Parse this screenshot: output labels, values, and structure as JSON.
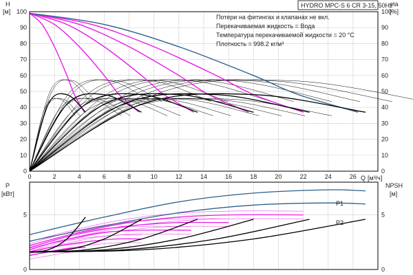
{
  "chart_data": [
    {
      "type": "line",
      "title": "HYDRO MPC-S 6 CR 3-15, 50Hz",
      "info_lines": [
        "Потери на фитингах и клапанах не вкл.",
        "Перекачиваемая жидкость = Вода",
        "Температура перекачиваемой жидкости = 20 °C",
        "Плотность = 998.2 кг/м³"
      ],
      "ylabel_left": "H",
      "ylabel_left_unit": "[м]",
      "ylabel_right": "eta",
      "ylabel_right_unit": "[%]",
      "xlabel": "Q",
      "xlabel_unit": "[м³/ч]",
      "xlim": [
        0,
        28
      ],
      "ylim": [
        0,
        100
      ],
      "x_ticks": [
        "0",
        "2",
        "4",
        "6",
        "8",
        "10",
        "12",
        "14",
        "16",
        "18",
        "20",
        "22",
        "24",
        "26"
      ],
      "y_ticks": [
        "0",
        "10",
        "20",
        "30",
        "40",
        "50",
        "60",
        "70",
        "80",
        "90",
        "100"
      ],
      "grid": true,
      "colors": {
        "pump_curves": "#e81be8",
        "max_curve": "#2c5f8a",
        "efficiency": "#000000"
      },
      "series": [
        {
          "group": "head",
          "color": "#e81be8",
          "x": [
            0,
            1,
            2,
            3,
            3.6,
            4.4
          ],
          "y": [
            99,
            92,
            78,
            60,
            48,
            37
          ]
        },
        {
          "group": "head",
          "color": "#e81be8",
          "x": [
            0,
            2,
            4,
            6,
            7.2,
            8.8
          ],
          "y": [
            99,
            92,
            78,
            60,
            48,
            37
          ]
        },
        {
          "group": "head",
          "color": "#e81be8",
          "x": [
            0,
            3,
            6,
            9,
            10.8,
            13.2
          ],
          "y": [
            99,
            92,
            78,
            60,
            48,
            37
          ]
        },
        {
          "group": "head",
          "color": "#e81be8",
          "x": [
            0,
            4,
            8,
            12,
            14.4,
            17.6
          ],
          "y": [
            99,
            92,
            78,
            60,
            48,
            37
          ]
        },
        {
          "group": "head",
          "color": "#e81be8",
          "x": [
            0,
            5,
            10,
            15,
            18,
            22
          ],
          "y": [
            99,
            92,
            78,
            60,
            48,
            37
          ]
        },
        {
          "group": "head",
          "color": "#2c5f8a",
          "x": [
            0,
            6,
            12,
            18,
            21.6,
            26.4
          ],
          "y": [
            99,
            92,
            78,
            60,
            48,
            37
          ]
        },
        {
          "group": "eta",
          "color": "#000000",
          "x": [
            0,
            1.5,
            3,
            4.5
          ],
          "y": [
            0,
            42,
            48,
            37
          ]
        },
        {
          "group": "eta",
          "color": "#000000",
          "x": [
            0,
            3,
            6,
            9
          ],
          "y": [
            0,
            42,
            48,
            37
          ]
        },
        {
          "group": "eta",
          "color": "#000000",
          "x": [
            0,
            4.5,
            9,
            13.5
          ],
          "y": [
            0,
            42,
            48,
            37
          ]
        },
        {
          "group": "eta",
          "color": "#000000",
          "x": [
            0,
            6,
            12,
            18
          ],
          "y": [
            0,
            42,
            48,
            37
          ]
        },
        {
          "group": "eta",
          "color": "#000000",
          "x": [
            0,
            7.5,
            15,
            22.5
          ],
          "y": [
            0,
            42,
            48,
            37
          ]
        },
        {
          "group": "eta",
          "color": "#000000",
          "x": [
            0,
            9,
            18,
            27
          ],
          "y": [
            0,
            42,
            48,
            37
          ]
        }
      ]
    },
    {
      "type": "line",
      "ylabel_left": "P",
      "ylabel_left_unit": "[кВт]",
      "ylabel_right": "NPSH",
      "ylabel_right_unit": "[м]",
      "xlim": [
        0,
        28
      ],
      "ylim": [
        0,
        8
      ],
      "y_ticks": [
        "0",
        "5"
      ],
      "y_tick_values": [
        0,
        5
      ],
      "grid": true,
      "series_labels": [
        "P1",
        "P2"
      ],
      "series": [
        {
          "name": "P1",
          "group": "p1",
          "color": "#2c5f8a",
          "x": [
            0,
            6,
            12,
            18,
            24,
            27
          ],
          "y": [
            3.2,
            4.8,
            6.2,
            7.0,
            7.3,
            7.2
          ]
        },
        {
          "name": "P2",
          "group": "p2",
          "color": "#2c5f8a",
          "x": [
            0,
            6,
            12,
            18,
            24,
            27
          ],
          "y": [
            2.6,
            4.0,
            5.2,
            5.9,
            6.1,
            6.0
          ]
        },
        {
          "group": "p",
          "color": "#e81be8",
          "x": [
            0,
            4,
            8,
            12,
            16,
            22
          ],
          "y": [
            2.2,
            3.4,
            4.3,
            4.8,
            5.0,
            5.0
          ]
        },
        {
          "group": "p",
          "color": "#e81be8",
          "x": [
            0,
            3,
            6,
            9,
            12,
            16
          ],
          "y": [
            2.0,
            3.0,
            3.7,
            4.1,
            4.3,
            4.3
          ]
        },
        {
          "group": "p",
          "color": "#e81be8",
          "x": [
            0,
            2,
            4,
            6,
            9,
            13
          ],
          "y": [
            1.8,
            2.5,
            3.0,
            3.4,
            3.6,
            3.6
          ]
        },
        {
          "group": "p",
          "color": "#e81be8",
          "x": [
            0,
            1.5,
            3,
            5,
            7,
            9
          ],
          "y": [
            1.6,
            2.0,
            2.3,
            2.6,
            2.8,
            2.8
          ]
        },
        {
          "group": "p",
          "color": "#e81be8",
          "x": [
            0,
            1,
            2,
            3,
            4,
            4.5
          ],
          "y": [
            1.3,
            1.5,
            1.7,
            1.9,
            2.0,
            2.0
          ]
        },
        {
          "group": "npsh",
          "color": "#000000",
          "x": [
            0,
            1.5,
            3,
            4.5
          ],
          "y": [
            1.6,
            1.8,
            2.8,
            4.8
          ]
        },
        {
          "group": "npsh",
          "color": "#000000",
          "x": [
            0,
            3,
            6,
            9
          ],
          "y": [
            1.6,
            1.8,
            2.8,
            4.6
          ]
        },
        {
          "group": "npsh",
          "color": "#000000",
          "x": [
            0,
            4.5,
            9,
            13.5
          ],
          "y": [
            1.6,
            1.8,
            2.8,
            4.6
          ]
        },
        {
          "group": "npsh",
          "color": "#000000",
          "x": [
            0,
            6,
            12,
            18
          ],
          "y": [
            1.6,
            1.8,
            2.8,
            4.6
          ]
        },
        {
          "group": "npsh",
          "color": "#000000",
          "x": [
            0,
            7.5,
            15,
            22.5
          ],
          "y": [
            1.6,
            1.8,
            2.8,
            4.6
          ]
        },
        {
          "group": "npsh",
          "color": "#000000",
          "x": [
            0,
            9,
            18,
            27
          ],
          "y": [
            1.6,
            1.8,
            2.8,
            4.6
          ]
        }
      ]
    }
  ]
}
